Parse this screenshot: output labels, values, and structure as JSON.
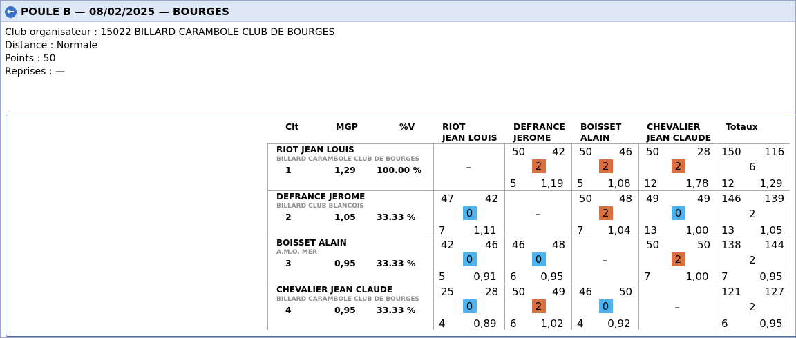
{
  "header": {
    "title": "POULE B — 08/02/2025 — BOURGES",
    "back_icon": "back-arrow-icon"
  },
  "info": {
    "club": "Club organisateur : 15022 BILLARD CARAMBOLE CLUB DE BOURGES",
    "distance": "Distance : Normale",
    "points": "Points : 50",
    "reprises": "Reprises : —"
  },
  "columns": {
    "clt": "Clt",
    "mgp": "MGP",
    "pv": "%V",
    "opp": [
      {
        "line1": "RIOT",
        "line2": "JEAN LOUIS"
      },
      {
        "line1": "DEFRANCE",
        "line2": "JEROME"
      },
      {
        "line1": "BOISSET",
        "line2": "ALAIN"
      },
      {
        "line1": "CHEVALIER",
        "line2": "JEAN CLAUDE"
      }
    ],
    "totals": "Totaux"
  },
  "colors": {
    "win": "#d9703f",
    "loss": "#4db2f0"
  },
  "players": [
    {
      "name": "RIOT JEAN LOUIS",
      "club": "BILLARD CARAMBOLE CLUB DE BOURGES",
      "clt": "1",
      "mgp": "1,29",
      "pv": "100.00 %",
      "matches": [
        null,
        {
          "pts": "50",
          "opp_pts": "42",
          "result": "2",
          "reprises": "5",
          "moy": "1,19"
        },
        {
          "pts": "50",
          "opp_pts": "46",
          "result": "2",
          "reprises": "5",
          "moy": "1,08"
        },
        {
          "pts": "50",
          "opp_pts": "28",
          "result": "2",
          "reprises": "12",
          "moy": "1,78"
        }
      ],
      "totals": {
        "pts": "150",
        "opp_pts": "116",
        "mp": "6",
        "reprises": "12",
        "moy": "1,29"
      }
    },
    {
      "name": "DEFRANCE JEROME",
      "club": "BILLARD CLUB BLANCOIS",
      "clt": "2",
      "mgp": "1,05",
      "pv": "33.33 %",
      "matches": [
        {
          "pts": "47",
          "opp_pts": "42",
          "result": "0",
          "reprises": "7",
          "moy": "1,11"
        },
        null,
        {
          "pts": "50",
          "opp_pts": "48",
          "result": "2",
          "reprises": "7",
          "moy": "1,04"
        },
        {
          "pts": "49",
          "opp_pts": "49",
          "result": "0",
          "reprises": "13",
          "moy": "1,00"
        }
      ],
      "totals": {
        "pts": "146",
        "opp_pts": "139",
        "mp": "2",
        "reprises": "13",
        "moy": "1,05"
      }
    },
    {
      "name": "BOISSET ALAIN",
      "club": "A.M.O. MER",
      "clt": "3",
      "mgp": "0,95",
      "pv": "33.33 %",
      "matches": [
        {
          "pts": "42",
          "opp_pts": "46",
          "result": "0",
          "reprises": "5",
          "moy": "0,91"
        },
        {
          "pts": "46",
          "opp_pts": "48",
          "result": "0",
          "reprises": "6",
          "moy": "0,95"
        },
        null,
        {
          "pts": "50",
          "opp_pts": "50",
          "result": "2",
          "reprises": "7",
          "moy": "1,00"
        }
      ],
      "totals": {
        "pts": "138",
        "opp_pts": "144",
        "mp": "2",
        "reprises": "7",
        "moy": "0,95"
      }
    },
    {
      "name": "CHEVALIER JEAN CLAUDE",
      "club": "BILLARD CARAMBOLE CLUB DE BOURGES",
      "clt": "4",
      "mgp": "0,95",
      "pv": "33.33 %",
      "matches": [
        {
          "pts": "25",
          "opp_pts": "28",
          "result": "0",
          "reprises": "4",
          "moy": "0,89"
        },
        {
          "pts": "50",
          "opp_pts": "49",
          "result": "2",
          "reprises": "6",
          "moy": "1,02"
        },
        {
          "pts": "46",
          "opp_pts": "50",
          "result": "0",
          "reprises": "4",
          "moy": "0,92"
        },
        null
      ],
      "totals": {
        "pts": "121",
        "opp_pts": "127",
        "mp": "2",
        "reprises": "6",
        "moy": "0,95"
      }
    }
  ],
  "empty_cell": "–"
}
